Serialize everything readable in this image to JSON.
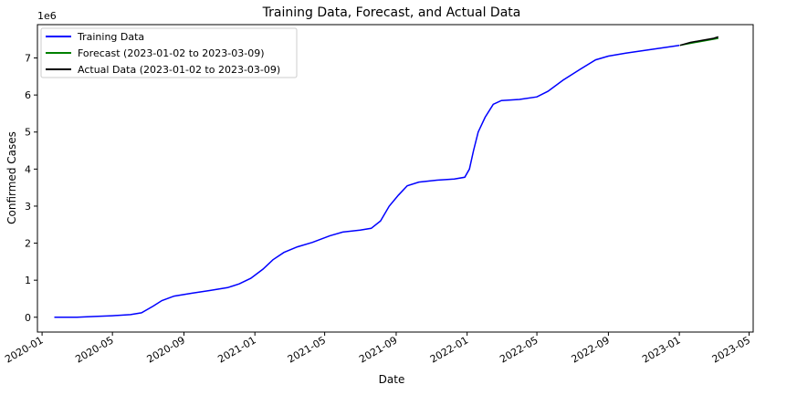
{
  "chart_data": {
    "type": "line",
    "title": "Training Data, Forecast, and Actual Data",
    "xlabel": "Date",
    "ylabel": "Confirmed Cases",
    "y_offset_label": "1e6",
    "xlim": [
      "2019-12-24",
      "2023-05-08"
    ],
    "ylim": [
      -400000,
      7900000
    ],
    "x_ticks": [
      "2020-01",
      "2020-05",
      "2020-09",
      "2021-01",
      "2021-05",
      "2021-09",
      "2022-01",
      "2022-05",
      "2022-09",
      "2023-01",
      "2023-05"
    ],
    "y_ticks": [
      0,
      1,
      2,
      3,
      4,
      5,
      6,
      7
    ],
    "y_tick_scale": 1000000,
    "grid": false,
    "legend_position": "top-left",
    "series": [
      {
        "name": "Training Data",
        "color": "#0000ff",
        "points": [
          [
            "2020-01-22",
            0
          ],
          [
            "2020-03-01",
            0
          ],
          [
            "2020-04-01",
            20000
          ],
          [
            "2020-05-01",
            40000
          ],
          [
            "2020-06-01",
            70000
          ],
          [
            "2020-06-20",
            120000
          ],
          [
            "2020-07-10",
            300000
          ],
          [
            "2020-07-25",
            450000
          ],
          [
            "2020-08-15",
            570000
          ],
          [
            "2020-09-15",
            650000
          ],
          [
            "2020-10-15",
            720000
          ],
          [
            "2020-11-15",
            800000
          ],
          [
            "2020-12-05",
            900000
          ],
          [
            "2020-12-25",
            1050000
          ],
          [
            "2021-01-15",
            1300000
          ],
          [
            "2021-02-01",
            1550000
          ],
          [
            "2021-02-20",
            1750000
          ],
          [
            "2021-03-15",
            1900000
          ],
          [
            "2021-04-10",
            2020000
          ],
          [
            "2021-05-10",
            2200000
          ],
          [
            "2021-06-01",
            2300000
          ],
          [
            "2021-07-01",
            2350000
          ],
          [
            "2021-07-20",
            2400000
          ],
          [
            "2021-08-05",
            2600000
          ],
          [
            "2021-08-20",
            3000000
          ],
          [
            "2021-09-05",
            3300000
          ],
          [
            "2021-09-20",
            3550000
          ],
          [
            "2021-10-10",
            3650000
          ],
          [
            "2021-11-10",
            3700000
          ],
          [
            "2021-12-10",
            3730000
          ],
          [
            "2021-12-28",
            3780000
          ],
          [
            "2022-01-05",
            4000000
          ],
          [
            "2022-01-12",
            4500000
          ],
          [
            "2022-01-20",
            5000000
          ],
          [
            "2022-02-01",
            5400000
          ],
          [
            "2022-02-15",
            5750000
          ],
          [
            "2022-03-01",
            5850000
          ],
          [
            "2022-04-01",
            5880000
          ],
          [
            "2022-05-01",
            5950000
          ],
          [
            "2022-05-20",
            6100000
          ],
          [
            "2022-06-15",
            6400000
          ],
          [
            "2022-07-15",
            6700000
          ],
          [
            "2022-08-10",
            6950000
          ],
          [
            "2022-09-01",
            7050000
          ],
          [
            "2022-10-01",
            7130000
          ],
          [
            "2022-11-01",
            7200000
          ],
          [
            "2022-12-01",
            7270000
          ],
          [
            "2023-01-01",
            7340000
          ]
        ]
      },
      {
        "name": "Forecast (2023-01-02 to 2023-03-09)",
        "color": "#008000",
        "points": [
          [
            "2023-01-02",
            7340000
          ],
          [
            "2023-02-01",
            7430000
          ],
          [
            "2023-03-09",
            7530000
          ]
        ]
      },
      {
        "name": "Actual Data (2023-01-02 to 2023-03-09)",
        "color": "#000000",
        "points": [
          [
            "2023-01-02",
            7340000
          ],
          [
            "2023-01-20",
            7420000
          ],
          [
            "2023-02-10",
            7480000
          ],
          [
            "2023-03-01",
            7530000
          ],
          [
            "2023-03-09",
            7570000
          ]
        ]
      }
    ]
  }
}
